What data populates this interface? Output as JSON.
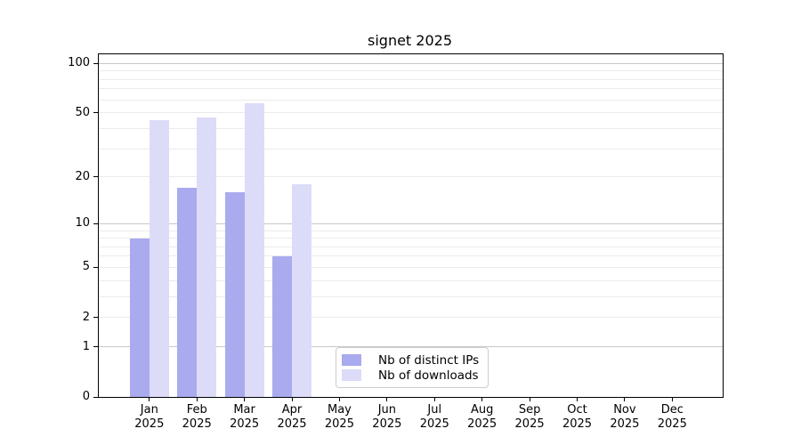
{
  "title": "signet 2025",
  "chart_data": {
    "type": "bar",
    "title": "signet 2025",
    "xlabel": "",
    "ylabel": "",
    "y_scale": "log10(1+x)",
    "ylim": [
      0,
      113
    ],
    "grid": "on",
    "legend_position": "bottom-center-inside",
    "categories": [
      {
        "month": "Jan",
        "year": "2025"
      },
      {
        "month": "Feb",
        "year": "2025"
      },
      {
        "month": "Mar",
        "year": "2025"
      },
      {
        "month": "Apr",
        "year": "2025"
      },
      {
        "month": "May",
        "year": "2025"
      },
      {
        "month": "Jun",
        "year": "2025"
      },
      {
        "month": "Jul",
        "year": "2025"
      },
      {
        "month": "Aug",
        "year": "2025"
      },
      {
        "month": "Sep",
        "year": "2025"
      },
      {
        "month": "Oct",
        "year": "2025"
      },
      {
        "month": "Nov",
        "year": "2025"
      },
      {
        "month": "Dec",
        "year": "2025"
      }
    ],
    "series": [
      {
        "name": "Nb of distinct IPs",
        "color": "#aaaaee",
        "values": [
          8,
          17,
          16,
          6,
          null,
          null,
          null,
          null,
          null,
          null,
          null,
          null
        ]
      },
      {
        "name": "Nb of downloads",
        "color": "#dcdcf8",
        "values": [
          45,
          47,
          57,
          18,
          null,
          null,
          null,
          null,
          null,
          null,
          null,
          null
        ]
      }
    ],
    "y_ticks": [
      0,
      1,
      2,
      5,
      10,
      20,
      50,
      100
    ],
    "y_major_gridlines": [
      1,
      10,
      100
    ],
    "y_minor_gridlines": [
      2,
      3,
      4,
      5,
      6,
      7,
      8,
      9,
      20,
      30,
      40,
      50,
      60,
      70,
      80,
      90
    ]
  },
  "colors": {
    "axis": "#000000",
    "major_grid": "#c8c8c8",
    "minor_grid": "#ebebeb",
    "background": "#ffffff",
    "legend_border": "#cccccc"
  }
}
